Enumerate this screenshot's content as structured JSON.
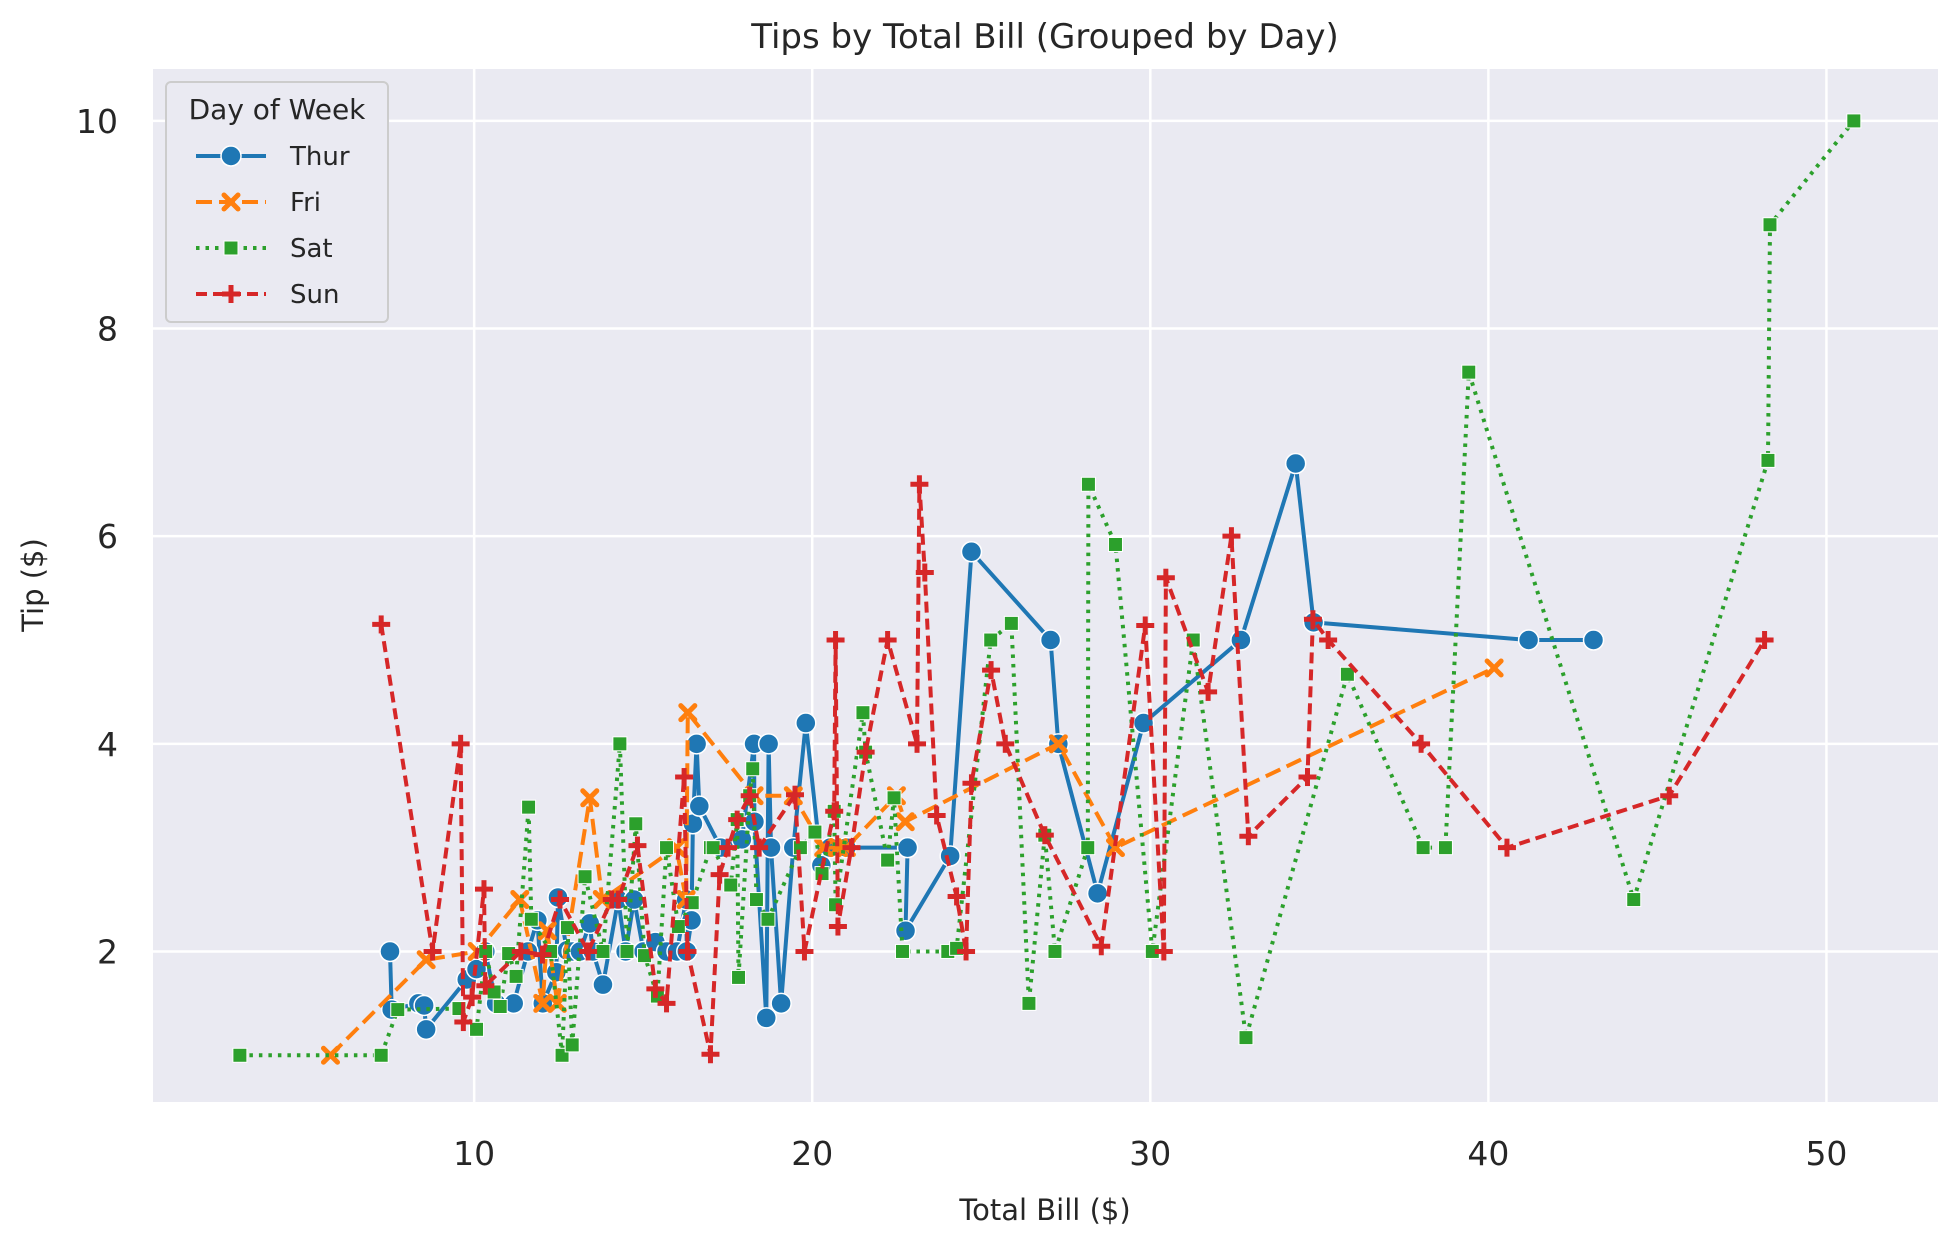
{
  "chart_data": {
    "type": "line",
    "title": "Tips by Total Bill (Grouped by Day)",
    "xlabel": "Total Bill ($)",
    "ylabel": "Tip ($)",
    "xlim": [
      0.5,
      53.3
    ],
    "ylim": [
      0.55,
      10.5
    ],
    "xticks": [
      10,
      20,
      30,
      40,
      50
    ],
    "yticks": [
      2,
      4,
      6,
      8,
      10
    ],
    "grid": true,
    "background": "#eaeaf2",
    "legend": {
      "title": "Day of Week",
      "placement": "top-left"
    },
    "series": [
      {
        "name": "Thur",
        "color": "#1f77b4",
        "marker": "circle",
        "dash": "solid",
        "points": [
          [
            7.51,
            2.0
          ],
          [
            7.56,
            1.44
          ],
          [
            8.35,
            1.5
          ],
          [
            8.52,
            1.48
          ],
          [
            8.58,
            1.25
          ],
          [
            9.78,
            1.73
          ],
          [
            10.07,
            1.83
          ],
          [
            10.33,
            2.0
          ],
          [
            10.65,
            1.5
          ],
          [
            11.17,
            1.5
          ],
          [
            11.59,
            2.0
          ],
          [
            11.87,
            2.3
          ],
          [
            12.03,
            1.5
          ],
          [
            12.43,
            1.8
          ],
          [
            12.48,
            2.52
          ],
          [
            12.74,
            2.01
          ],
          [
            12.9,
            2.0
          ],
          [
            13.13,
            2.0
          ],
          [
            13.42,
            2.27
          ],
          [
            13.51,
            2.0
          ],
          [
            13.81,
            1.68
          ],
          [
            14.26,
            2.5
          ],
          [
            14.48,
            2.0
          ],
          [
            14.73,
            2.5
          ],
          [
            15.01,
            2.0
          ],
          [
            15.36,
            2.09
          ],
          [
            15.69,
            2.0
          ],
          [
            16.0,
            2.0
          ],
          [
            16.27,
            2.5
          ],
          [
            16.29,
            2.0
          ],
          [
            16.43,
            2.3
          ],
          [
            16.47,
            3.23
          ],
          [
            16.58,
            4.0
          ],
          [
            16.66,
            3.4
          ],
          [
            17.29,
            3.0
          ],
          [
            17.92,
            3.08
          ],
          [
            18.28,
            4.0
          ],
          [
            18.29,
            3.25
          ],
          [
            18.64,
            1.36
          ],
          [
            18.71,
            4.0
          ],
          [
            18.78,
            3.0
          ],
          [
            19.08,
            1.5
          ],
          [
            19.44,
            3.0
          ],
          [
            19.81,
            4.2
          ],
          [
            20.27,
            2.83
          ],
          [
            20.53,
            3.0
          ],
          [
            21.01,
            3.0
          ],
          [
            22.82,
            3.0
          ],
          [
            22.76,
            2.2
          ],
          [
            24.08,
            2.92
          ],
          [
            24.71,
            5.85
          ],
          [
            27.05,
            5.0
          ],
          [
            27.28,
            4.0
          ],
          [
            28.44,
            2.56
          ],
          [
            29.8,
            4.2
          ],
          [
            32.68,
            5.0
          ],
          [
            34.3,
            6.7
          ],
          [
            34.83,
            5.17
          ],
          [
            41.19,
            5.0
          ],
          [
            43.11,
            5.0
          ]
        ]
      },
      {
        "name": "Fri",
        "color": "#ff7f0e",
        "marker": "x",
        "dash": "long",
        "points": [
          [
            5.75,
            1.0
          ],
          [
            8.58,
            1.92
          ],
          [
            10.09,
            2.0
          ],
          [
            11.35,
            2.5
          ],
          [
            12.03,
            1.5
          ],
          [
            12.16,
            2.2
          ],
          [
            12.46,
            1.5
          ],
          [
            13.42,
            3.48
          ],
          [
            13.79,
            2.5
          ],
          [
            15.98,
            3.0
          ],
          [
            16.27,
            2.5
          ],
          [
            16.32,
            4.3
          ],
          [
            18.28,
            3.5
          ],
          [
            19.44,
            3.5
          ],
          [
            20.34,
            3.0
          ],
          [
            20.78,
            3.0
          ],
          [
            21.01,
            3.0
          ],
          [
            22.49,
            3.5
          ],
          [
            22.75,
            3.25
          ],
          [
            27.28,
            4.0
          ],
          [
            28.97,
            3.0
          ],
          [
            40.17,
            4.73
          ]
        ]
      },
      {
        "name": "Sat",
        "color": "#2ca02c",
        "marker": "square",
        "dash": "dot",
        "points": [
          [
            3.07,
            1.0
          ],
          [
            7.25,
            1.0
          ],
          [
            7.74,
            1.44
          ],
          [
            9.55,
            1.45
          ],
          [
            10.07,
            1.25
          ],
          [
            10.34,
            2.0
          ],
          [
            10.59,
            1.61
          ],
          [
            10.77,
            1.47
          ],
          [
            11.02,
            1.98
          ],
          [
            11.24,
            1.76
          ],
          [
            11.61,
            3.39
          ],
          [
            11.69,
            2.31
          ],
          [
            12.26,
            2.0
          ],
          [
            12.6,
            1.0
          ],
          [
            12.76,
            2.23
          ],
          [
            12.9,
            1.1
          ],
          [
            13.28,
            2.72
          ],
          [
            13.81,
            2.0
          ],
          [
            14.31,
            4.0
          ],
          [
            14.52,
            2.0
          ],
          [
            14.78,
            3.23
          ],
          [
            15.04,
            1.96
          ],
          [
            15.42,
            1.57
          ],
          [
            15.69,
            3.0
          ],
          [
            16.04,
            2.24
          ],
          [
            16.45,
            2.47
          ],
          [
            16.99,
            3.0
          ],
          [
            17.07,
            3.0
          ],
          [
            17.59,
            2.64
          ],
          [
            17.78,
            3.27
          ],
          [
            17.82,
            1.75
          ],
          [
            18.15,
            3.5
          ],
          [
            18.24,
            3.76
          ],
          [
            18.35,
            2.5
          ],
          [
            18.69,
            2.31
          ],
          [
            19.65,
            3.0
          ],
          [
            20.08,
            3.15
          ],
          [
            20.29,
            2.75
          ],
          [
            20.65,
            3.35
          ],
          [
            20.69,
            2.45
          ],
          [
            21.5,
            4.3
          ],
          [
            21.58,
            3.92
          ],
          [
            22.23,
            2.88
          ],
          [
            22.42,
            3.48
          ],
          [
            22.67,
            2.0
          ],
          [
            24.01,
            2.0
          ],
          [
            24.27,
            2.03
          ],
          [
            25.28,
            5.0
          ],
          [
            25.89,
            5.16
          ],
          [
            26.41,
            1.5
          ],
          [
            26.88,
            3.12
          ],
          [
            27.18,
            2.0
          ],
          [
            28.15,
            3.0
          ],
          [
            28.17,
            6.5
          ],
          [
            28.97,
            5.92
          ],
          [
            30.06,
            2.0
          ],
          [
            31.27,
            5.0
          ],
          [
            32.83,
            1.17
          ],
          [
            35.83,
            4.67
          ],
          [
            38.07,
            3.0
          ],
          [
            38.73,
            3.0
          ],
          [
            39.42,
            7.58
          ],
          [
            44.3,
            2.5
          ],
          [
            48.27,
            6.73
          ],
          [
            48.33,
            9.0
          ],
          [
            50.81,
            10.0
          ]
        ]
      },
      {
        "name": "Sun",
        "color": "#d62728",
        "marker": "plus",
        "dash": "dash",
        "points": [
          [
            7.25,
            5.15
          ],
          [
            8.77,
            2.0
          ],
          [
            9.6,
            4.0
          ],
          [
            9.68,
            1.32
          ],
          [
            9.94,
            1.56
          ],
          [
            10.29,
            2.6
          ],
          [
            10.33,
            1.67
          ],
          [
            11.38,
            2.0
          ],
          [
            12.02,
            1.97
          ],
          [
            12.54,
            2.5
          ],
          [
            13.37,
            2.0
          ],
          [
            14.07,
            2.5
          ],
          [
            14.26,
            2.5
          ],
          [
            14.83,
            3.02
          ],
          [
            15.36,
            1.64
          ],
          [
            15.69,
            1.5
          ],
          [
            16.21,
            3.68
          ],
          [
            16.31,
            2.0
          ],
          [
            16.99,
            1.01
          ],
          [
            17.26,
            2.74
          ],
          [
            17.51,
            3.0
          ],
          [
            17.78,
            3.27
          ],
          [
            18.15,
            3.5
          ],
          [
            18.43,
            3.0
          ],
          [
            19.49,
            3.51
          ],
          [
            19.77,
            2.0
          ],
          [
            20.65,
            3.35
          ],
          [
            20.69,
            5.0
          ],
          [
            20.76,
            2.24
          ],
          [
            21.16,
            3.0
          ],
          [
            21.58,
            3.92
          ],
          [
            22.23,
            5.0
          ],
          [
            23.1,
            4.0
          ],
          [
            23.17,
            6.5
          ],
          [
            23.33,
            5.65
          ],
          [
            23.68,
            3.31
          ],
          [
            24.27,
            2.53
          ],
          [
            24.55,
            2.0
          ],
          [
            24.71,
            3.62
          ],
          [
            25.29,
            4.71
          ],
          [
            25.71,
            4.0
          ],
          [
            26.88,
            3.12
          ],
          [
            28.55,
            2.05
          ],
          [
            29.85,
            5.14
          ],
          [
            30.4,
            2.0
          ],
          [
            30.46,
            5.6
          ],
          [
            31.71,
            4.5
          ],
          [
            32.4,
            6.0
          ],
          [
            32.9,
            3.11
          ],
          [
            34.65,
            3.68
          ],
          [
            34.81,
            5.2
          ],
          [
            35.26,
            5.0
          ],
          [
            38.01,
            4.0
          ],
          [
            40.55,
            3.0
          ],
          [
            45.35,
            3.5
          ],
          [
            48.17,
            5.0
          ]
        ]
      }
    ]
  }
}
